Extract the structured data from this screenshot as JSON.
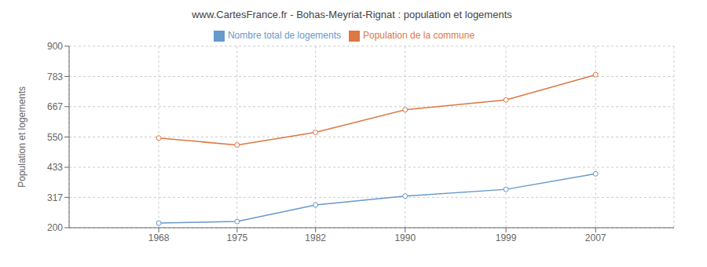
{
  "chart_data": {
    "type": "line",
    "title": "www.CartesFrance.fr - Bohas-Meyriat-Rignat : population et logements",
    "ylabel": "Population et logements",
    "x": [
      1968,
      1975,
      1982,
      1990,
      1999,
      2007
    ],
    "series": [
      {
        "name": "Nombre total de logements",
        "color": "#6699cc",
        "marker": "circle",
        "values": [
          218,
          224,
          288,
          322,
          348,
          408
        ]
      },
      {
        "name": "Population de la commune",
        "color": "#dd7744",
        "marker": "circle",
        "values": [
          546,
          519,
          568,
          655,
          693,
          790
        ]
      }
    ],
    "xlim": [
      1960,
      2014
    ],
    "xticks": [
      1968,
      1975,
      1982,
      1990,
      1999,
      2007
    ],
    "ylim": [
      200,
      900
    ],
    "yticks": [
      200,
      317,
      433,
      550,
      667,
      783,
      900
    ],
    "grid": true,
    "legend": "top"
  }
}
